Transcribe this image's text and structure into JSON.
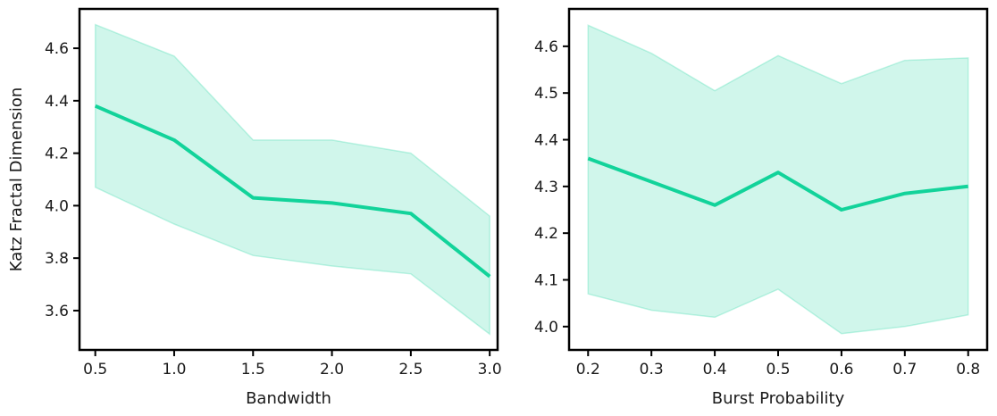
{
  "colors": {
    "line": "#12d39a",
    "band_fill": "#12d39a",
    "axes": "#000000"
  },
  "chart_data": [
    {
      "type": "line",
      "title": "",
      "xlabel": "Bandwidth",
      "ylabel": "Katz Fractal Dimension",
      "xlim": [
        0.4,
        3.05
      ],
      "ylim": [
        3.45,
        4.75
      ],
      "xticks": [
        0.5,
        1.0,
        1.5,
        2.0,
        2.5,
        3.0
      ],
      "xtick_labels": [
        "0.5",
        "1.0",
        "1.5",
        "2.0",
        "2.5",
        "3.0"
      ],
      "yticks": [
        3.6,
        3.8,
        4.0,
        4.2,
        4.4,
        4.6
      ],
      "ytick_labels": [
        "3.6",
        "3.8",
        "4.0",
        "4.2",
        "4.4",
        "4.6"
      ],
      "grid": false,
      "series": [
        {
          "x": [
            0.5,
            1.0,
            1.5,
            2.0,
            2.5,
            3.0
          ],
          "y": [
            4.38,
            4.25,
            4.03,
            4.01,
            3.97,
            3.73
          ],
          "ci_lower": [
            4.07,
            3.93,
            3.81,
            3.77,
            3.74,
            3.51
          ],
          "ci_upper": [
            4.69,
            4.57,
            4.25,
            4.25,
            4.2,
            3.96
          ]
        }
      ]
    },
    {
      "type": "line",
      "title": "",
      "xlabel": "Burst Probability",
      "ylabel": "",
      "xlim": [
        0.17,
        0.83
      ],
      "ylim": [
        3.95,
        4.68
      ],
      "xticks": [
        0.2,
        0.3,
        0.4,
        0.5,
        0.6,
        0.7,
        0.8
      ],
      "xtick_labels": [
        "0.2",
        "0.3",
        "0.4",
        "0.5",
        "0.6",
        "0.7",
        "0.8"
      ],
      "yticks": [
        4.0,
        4.1,
        4.2,
        4.3,
        4.4,
        4.5,
        4.6
      ],
      "ytick_labels": [
        "4.0",
        "4.1",
        "4.2",
        "4.3",
        "4.4",
        "4.5",
        "4.6"
      ],
      "grid": false,
      "series": [
        {
          "x": [
            0.2,
            0.3,
            0.4,
            0.5,
            0.6,
            0.7,
            0.8
          ],
          "y": [
            4.36,
            4.31,
            4.26,
            4.33,
            4.25,
            4.285,
            4.3
          ],
          "ci_lower": [
            4.07,
            4.035,
            4.02,
            4.08,
            3.985,
            4.0,
            4.025
          ],
          "ci_upper": [
            4.645,
            4.585,
            4.505,
            4.58,
            4.52,
            4.57,
            4.575
          ]
        }
      ]
    }
  ]
}
